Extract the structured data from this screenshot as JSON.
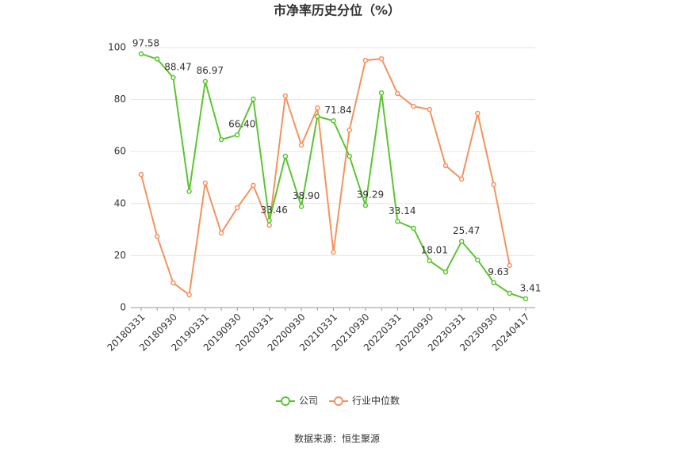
{
  "chart_data": {
    "type": "line",
    "title": "市净率历史分位（%）",
    "source": "数据来源：恒生聚源",
    "categories": [
      "20180331",
      null,
      "20180930",
      null,
      "20190331",
      null,
      "20190930",
      null,
      "20200331",
      null,
      "20200930",
      null,
      "20210331",
      null,
      "20210930",
      null,
      "20220331",
      null,
      "20220930",
      null,
      "20230331",
      null,
      "20230930",
      null,
      "20240417"
    ],
    "series": [
      {
        "name": "公司",
        "color": "#5bc531",
        "values": [
          97.58,
          95.6,
          88.47,
          44.7,
          86.97,
          64.6,
          66.4,
          80.2,
          33.46,
          58.2,
          38.9,
          73.5,
          71.84,
          58.2,
          39.29,
          82.6,
          33.14,
          30.5,
          18.01,
          13.7,
          25.47,
          18.3,
          9.63,
          5.5,
          3.41
        ],
        "value_labels": [
          "97.58",
          null,
          "88.47",
          null,
          "86.97",
          null,
          "66.40",
          null,
          "33.46",
          null,
          "38.90",
          null,
          "71.84",
          null,
          "39.29",
          null,
          "33.14",
          null,
          "18.01",
          null,
          "25.47",
          null,
          "9.63",
          null,
          "3.41"
        ]
      },
      {
        "name": "行业中位数",
        "color": "#f4935f",
        "values": [
          51.2,
          27.4,
          9.5,
          4.9,
          47.9,
          28.7,
          38.4,
          47.0,
          31.7,
          81.4,
          62.5,
          76.8,
          21.3,
          68.3,
          95.1,
          95.7,
          82.3,
          77.4,
          76.2,
          54.6,
          49.4,
          74.7,
          47.3,
          16.2,
          null
        ]
      }
    ],
    "ylim": [
      0,
      100
    ],
    "yticks": [
      0,
      20,
      40,
      60,
      80,
      100
    ],
    "grid": true
  }
}
